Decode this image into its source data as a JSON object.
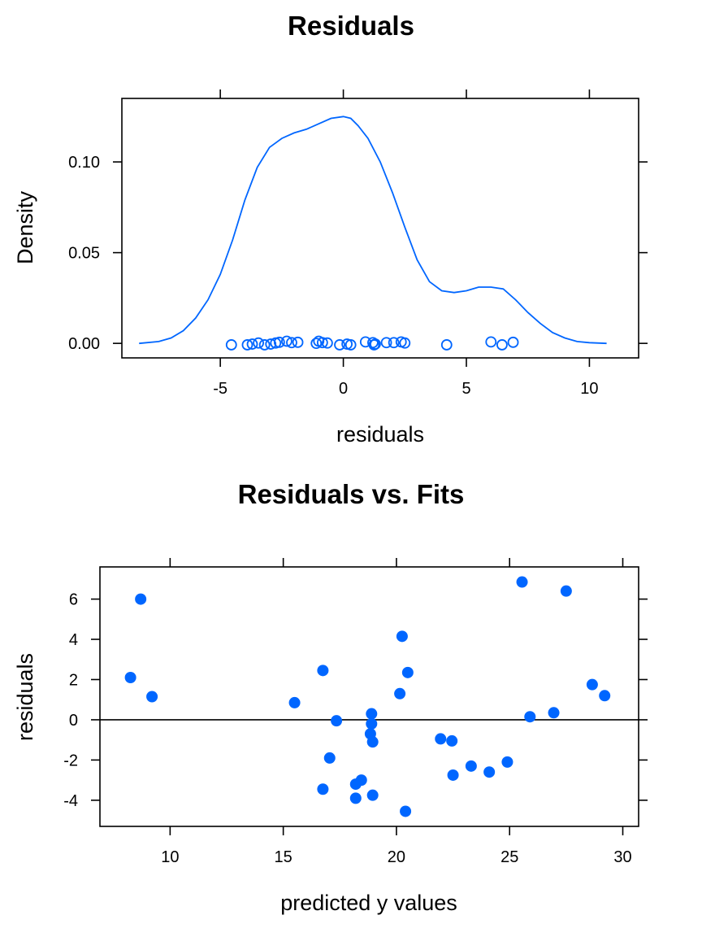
{
  "chart_data": [
    {
      "type": "density",
      "title": "Residuals",
      "xlabel": "residuals",
      "ylabel": "Density",
      "xlim": [
        -9.0,
        12.0
      ],
      "ylim": [
        -0.008,
        0.135
      ],
      "xticks": [
        -5,
        0,
        5,
        10
      ],
      "xtick_labels": [
        "-5",
        "0",
        "5",
        "10"
      ],
      "yticks": [
        0.0,
        0.05,
        0.1
      ],
      "ytick_labels": [
        "0.00",
        "0.05",
        "0.10"
      ],
      "color": "#0066ff",
      "density_curve": {
        "x": [
          -8.3,
          -7.5,
          -7.0,
          -6.5,
          -6.0,
          -5.5,
          -5.0,
          -4.5,
          -4.0,
          -3.5,
          -3.0,
          -2.5,
          -2.0,
          -1.5,
          -1.0,
          -0.5,
          0.0,
          0.3,
          0.6,
          1.0,
          1.5,
          2.0,
          2.5,
          3.0,
          3.5,
          4.0,
          4.5,
          5.0,
          5.5,
          6.0,
          6.5,
          7.0,
          7.5,
          8.0,
          8.5,
          9.0,
          9.5,
          10.0,
          10.7
        ],
        "y": [
          0.0,
          0.001,
          0.003,
          0.007,
          0.014,
          0.024,
          0.038,
          0.057,
          0.079,
          0.097,
          0.108,
          0.113,
          0.116,
          0.118,
          0.121,
          0.124,
          0.125,
          0.124,
          0.12,
          0.113,
          0.1,
          0.083,
          0.064,
          0.046,
          0.034,
          0.029,
          0.028,
          0.029,
          0.031,
          0.031,
          0.03,
          0.024,
          0.017,
          0.011,
          0.006,
          0.003,
          0.001,
          0.0004,
          0.0
        ]
      },
      "rug_points": [
        {
          "x": -4.55,
          "y": -0.0008
        },
        {
          "x": -3.9,
          "y": -0.0008
        },
        {
          "x": -3.7,
          "y": -0.0004
        },
        {
          "x": -3.45,
          "y": 0.0002
        },
        {
          "x": -3.2,
          "y": -0.0008
        },
        {
          "x": -2.95,
          "y": -0.0004
        },
        {
          "x": -2.75,
          "y": 0.0002
        },
        {
          "x": -2.6,
          "y": 0.0006
        },
        {
          "x": -2.3,
          "y": 0.0012
        },
        {
          "x": -2.1,
          "y": 0.0004
        },
        {
          "x": -1.85,
          "y": 0.0006
        },
        {
          "x": -1.1,
          "y": 0.0
        },
        {
          "x": -1.0,
          "y": 0.0012
        },
        {
          "x": -0.85,
          "y": 0.0004
        },
        {
          "x": -0.65,
          "y": 0.0002
        },
        {
          "x": -0.15,
          "y": -0.0008
        },
        {
          "x": 0.15,
          "y": -0.0004
        },
        {
          "x": 0.3,
          "y": -0.0008
        },
        {
          "x": 0.9,
          "y": 0.0008
        },
        {
          "x": 1.2,
          "y": 0.0004
        },
        {
          "x": 1.25,
          "y": -0.0008
        },
        {
          "x": 1.3,
          "y": -0.0004
        },
        {
          "x": 1.75,
          "y": 0.0004
        },
        {
          "x": 2.05,
          "y": 0.0004
        },
        {
          "x": 2.35,
          "y": 0.0008
        },
        {
          "x": 2.5,
          "y": 0.0002
        },
        {
          "x": 4.2,
          "y": -0.0008
        },
        {
          "x": 6.0,
          "y": 0.0008
        },
        {
          "x": 6.45,
          "y": -0.0008
        },
        {
          "x": 6.9,
          "y": 0.0006
        }
      ]
    },
    {
      "type": "scatter",
      "title": "Residuals vs. Fits",
      "xlabel": "predicted y values",
      "ylabel": "residuals",
      "xlim": [
        6.9,
        30.7
      ],
      "ylim": [
        -5.3,
        7.6
      ],
      "xticks": [
        10,
        15,
        20,
        25,
        30
      ],
      "xtick_labels": [
        "10",
        "15",
        "20",
        "25",
        "30"
      ],
      "yticks": [
        -4,
        -2,
        0,
        2,
        4,
        6
      ],
      "ytick_labels": [
        "-4",
        "-2",
        "0",
        "2",
        "4",
        "6"
      ],
      "reference_line_y": 0,
      "color": "#0066ff",
      "points": [
        {
          "x": 8.25,
          "y": 2.1
        },
        {
          "x": 8.7,
          "y": 6.0
        },
        {
          "x": 9.2,
          "y": 1.15
        },
        {
          "x": 15.5,
          "y": 0.85
        },
        {
          "x": 16.75,
          "y": 2.45
        },
        {
          "x": 16.75,
          "y": -3.45
        },
        {
          "x": 17.05,
          "y": -1.9
        },
        {
          "x": 17.35,
          "y": -0.05
        },
        {
          "x": 18.2,
          "y": -3.2
        },
        {
          "x": 18.2,
          "y": -3.9
        },
        {
          "x": 18.45,
          "y": -3.0
        },
        {
          "x": 18.85,
          "y": -0.7
        },
        {
          "x": 18.9,
          "y": 0.3
        },
        {
          "x": 18.9,
          "y": -0.2
        },
        {
          "x": 18.95,
          "y": -1.1
        },
        {
          "x": 18.95,
          "y": -3.75
        },
        {
          "x": 20.15,
          "y": 1.3
        },
        {
          "x": 20.25,
          "y": 4.15
        },
        {
          "x": 20.4,
          "y": -4.55
        },
        {
          "x": 20.5,
          "y": 2.35
        },
        {
          "x": 21.95,
          "y": -0.95
        },
        {
          "x": 22.45,
          "y": -1.05
        },
        {
          "x": 22.5,
          "y": -2.75
        },
        {
          "x": 23.3,
          "y": -2.3
        },
        {
          "x": 24.1,
          "y": -2.6
        },
        {
          "x": 24.9,
          "y": -2.1
        },
        {
          "x": 25.55,
          "y": 6.85
        },
        {
          "x": 25.9,
          "y": 0.15
        },
        {
          "x": 26.95,
          "y": 0.35
        },
        {
          "x": 27.5,
          "y": 6.4
        },
        {
          "x": 28.65,
          "y": 1.75
        },
        {
          "x": 29.2,
          "y": 1.2
        }
      ]
    }
  ]
}
